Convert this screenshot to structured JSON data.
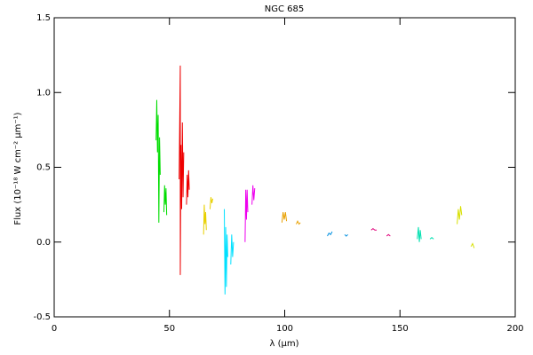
{
  "chart_data": {
    "type": "line",
    "title": "NGC 685",
    "x_label": "λ (μm)",
    "y_label": "Flux (10⁻¹⁸ W cm⁻² μm⁻¹)",
    "xlim": [
      0,
      200
    ],
    "xticks": [
      0,
      50,
      100,
      150,
      200
    ],
    "ylim": [
      -0.5,
      1.5
    ],
    "yticks": [
      -0.5,
      {
        "value": 0,
        "label": "0.0"
      },
      0.5,
      {
        "value": 1,
        "label": "1.0"
      },
      1.5
    ],
    "series": [
      {
        "color": "#00dd00",
        "x": [
          44.2,
          44.5,
          44.8,
          45.1,
          45.4,
          45.7,
          46.0,
          47.0,
          47.6,
          47.9,
          48.2,
          48.5,
          48.8
        ],
        "values": [
          0.68,
          0.95,
          0.6,
          0.85,
          0.13,
          0.7,
          0.45,
          null,
          0.2,
          0.38,
          0.25,
          0.36,
          0.18
        ]
      },
      {
        "color": "#ee0000",
        "x": [
          54.2,
          54.7,
          54.7,
          55.0,
          55.3,
          55.6,
          55.9,
          56.2,
          57.0,
          57.4,
          57.7,
          58.0,
          58.3,
          58.6
        ],
        "values": [
          0.42,
          1.18,
          -0.22,
          0.65,
          0.22,
          0.8,
          0.3,
          0.6,
          null,
          0.25,
          0.45,
          0.3,
          0.48,
          0.35
        ]
      },
      {
        "color": "#e8d000",
        "x": [
          64.8,
          65.1,
          65.4,
          65.7,
          66.0,
          67.0,
          67.6,
          68.0,
          68.4,
          68.8
        ],
        "values": [
          0.05,
          0.25,
          0.12,
          0.2,
          0.08,
          null,
          0.22,
          0.3,
          0.26,
          0.29
        ]
      },
      {
        "color": "#00e0ff",
        "x": [
          73.8,
          74.1,
          74.4,
          74.7,
          75.0,
          75.3,
          76.0,
          76.6,
          77.0,
          77.4,
          77.8
        ],
        "values": [
          0.22,
          -0.35,
          0.1,
          -0.3,
          0.05,
          -0.1,
          null,
          -0.15,
          0.05,
          -0.1,
          0.0
        ]
      },
      {
        "color": "#ee00ee",
        "x": [
          82.8,
          83.1,
          83.4,
          83.7,
          84.0,
          85.0,
          85.8,
          86.2,
          86.6,
          87.0
        ],
        "values": [
          0.0,
          0.35,
          0.15,
          0.35,
          0.2,
          null,
          0.25,
          0.38,
          0.28,
          0.36
        ]
      },
      {
        "color": "#e8a000",
        "x": [
          98.8,
          99.3,
          99.8,
          100.3,
          100.8,
          103.0,
          105.0,
          105.6,
          106.2,
          106.8
        ],
        "values": [
          0.13,
          0.2,
          0.15,
          0.2,
          0.14,
          null,
          0.12,
          0.14,
          0.12,
          0.13
        ]
      },
      {
        "color": "#0090e0",
        "x": [
          118.5,
          119.2,
          119.9,
          120.6,
          123.0,
          126.0,
          126.7,
          127.4
        ],
        "values": [
          0.04,
          0.06,
          0.05,
          0.07,
          null,
          0.05,
          0.04,
          0.05
        ]
      },
      {
        "color": "#e0007a",
        "x": [
          137.5,
          138.3,
          139.1,
          139.9,
          142.0,
          144.2,
          145.0,
          145.8
        ],
        "values": [
          0.08,
          0.09,
          0.08,
          0.08,
          null,
          0.04,
          0.05,
          0.04
        ]
      },
      {
        "color": "#00e0b0",
        "x": [
          157.5,
          158.0,
          158.4,
          158.8,
          159.2,
          161.0,
          163.0,
          163.8,
          164.6
        ],
        "values": [
          0.02,
          0.1,
          0.0,
          0.08,
          0.02,
          null,
          0.02,
          0.03,
          0.02
        ]
      },
      {
        "color": "#d8e000",
        "x": [
          174.8,
          175.3,
          175.8,
          176.3,
          176.8,
          179.0,
          180.8,
          181.5,
          182.2
        ],
        "values": [
          0.12,
          0.22,
          0.15,
          0.24,
          0.18,
          null,
          -0.03,
          -0.01,
          -0.04
        ]
      }
    ]
  }
}
